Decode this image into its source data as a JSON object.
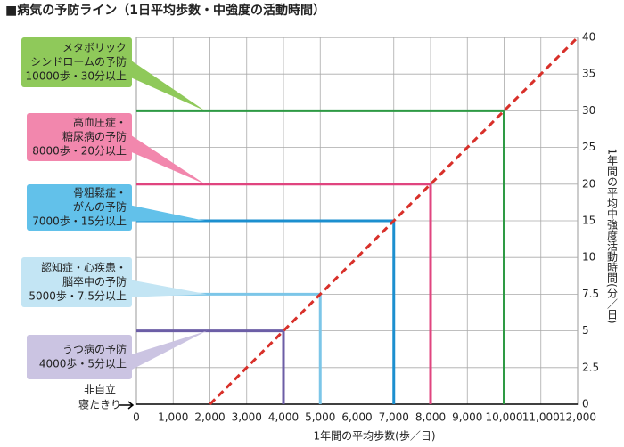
{
  "chart_data": {
    "type": "line",
    "title": "■病気の予防ライン（1日平均歩数・中強度の活動時間）",
    "x_label": "1年間の平均歩数(歩／日)",
    "y_label": "1年間の平均中強度活動時間(分／日)",
    "annotation": [
      "非自立",
      "寝たきり"
    ],
    "xlim": [
      0,
      12000
    ],
    "xticks": [
      0,
      {
        "value": 1000,
        "label": "1,000"
      },
      {
        "value": 2000,
        "label": "2,000"
      },
      {
        "value": 3000,
        "label": "3,000"
      },
      {
        "value": 4000,
        "label": "4,000"
      },
      {
        "value": 5000,
        "label": "5,000"
      },
      {
        "value": 6000,
        "label": "6,000"
      },
      {
        "value": 7000,
        "label": "7,000"
      },
      {
        "value": 8000,
        "label": "8,000"
      },
      {
        "value": 9000,
        "label": "9,000"
      },
      {
        "value": 10000,
        "label": "10,000"
      },
      {
        "value": 11000,
        "label": "11,000"
      },
      {
        "value": 12000,
        "label": "12,000"
      }
    ],
    "ylim": [
      0,
      40
    ],
    "yticks": [
      0,
      2.5,
      5,
      7.5,
      10,
      15,
      20,
      25,
      30,
      35,
      40
    ],
    "grid": true,
    "series": [
      {
        "color": "#d8302a",
        "dashed": true,
        "x": [
          2000,
          4000,
          5000,
          7000,
          8000,
          10000,
          12000
        ],
        "values": [
          0,
          5,
          7.5,
          15,
          20,
          30,
          40
        ]
      }
    ],
    "thresholds": [
      {
        "x": 10000,
        "y": 30,
        "color": "#2e9a44",
        "box_color": "#8fc95a",
        "label": [
          "メタボリック",
          "シンドロームの予防",
          "10000歩・30分以上"
        ]
      },
      {
        "x": 8000,
        "y": 20,
        "color": "#e0457f",
        "box_color": "#f287ad",
        "label": [
          "高血圧症・",
          "糖尿病の予防",
          "8000歩・20分以上"
        ]
      },
      {
        "x": 7000,
        "y": 15,
        "color": "#1c8fcf",
        "box_color": "#62c1ea",
        "label": [
          "骨粗鬆症・",
          "がんの予防",
          "7000歩・15分以上"
        ]
      },
      {
        "x": 5000,
        "y": 7.5,
        "color": "#7cc6e8",
        "box_color": "#c3e5f4",
        "label": [
          "認知症・心疾患・",
          "脳卒中の予防",
          "5000歩・7.5分以上"
        ]
      },
      {
        "x": 4000,
        "y": 5,
        "color": "#6c5ea6",
        "box_color": "#cbc4e2",
        "label": [
          "うつ病の予防",
          "4000歩・5分以上"
        ]
      }
    ]
  }
}
